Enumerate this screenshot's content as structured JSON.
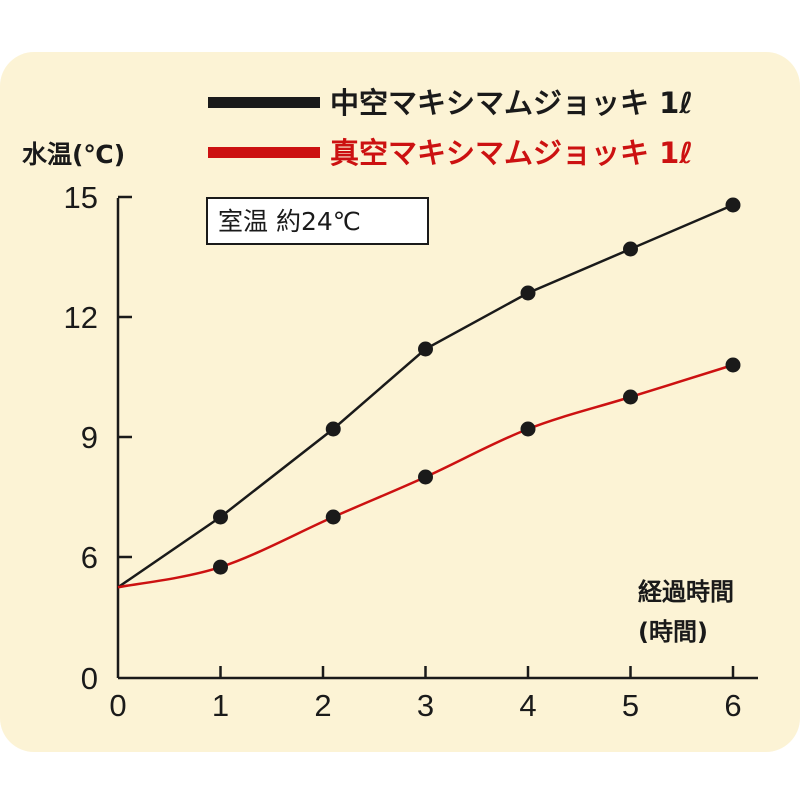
{
  "chart_data": {
    "type": "line",
    "title": "",
    "ylabel": "水温(℃)",
    "xlabel_lines": [
      "経過時間",
      "(時間)"
    ],
    "annotation": "室温 約24℃",
    "x": [
      0,
      1,
      2,
      3,
      4,
      5,
      6
    ],
    "x_ticks": [
      "0",
      "1",
      "2",
      "3",
      "4",
      "5",
      "6"
    ],
    "y_ticks": [
      "0",
      "6",
      "9",
      "12",
      "15"
    ],
    "y_tick_values": [
      0,
      6,
      9,
      12,
      15
    ],
    "y_scale_note": "axis breaks between 0 and 6",
    "legend_position": "top-right",
    "series": [
      {
        "name": "中空マキシマムジョッキ 1ℓ",
        "color": "#1a1a1a",
        "x": [
          0,
          1,
          2.1,
          3,
          4,
          5,
          6
        ],
        "values": [
          4.5,
          7.0,
          9.2,
          11.2,
          12.6,
          13.7,
          14.8
        ]
      },
      {
        "name": "真空マキシマムジョッキ 1ℓ",
        "color": "#cc1111",
        "x": [
          0,
          1,
          2.1,
          3,
          4,
          5,
          6
        ],
        "values": [
          4.5,
          5.5,
          7.0,
          8.0,
          9.2,
          10.0,
          10.8
        ]
      }
    ]
  }
}
